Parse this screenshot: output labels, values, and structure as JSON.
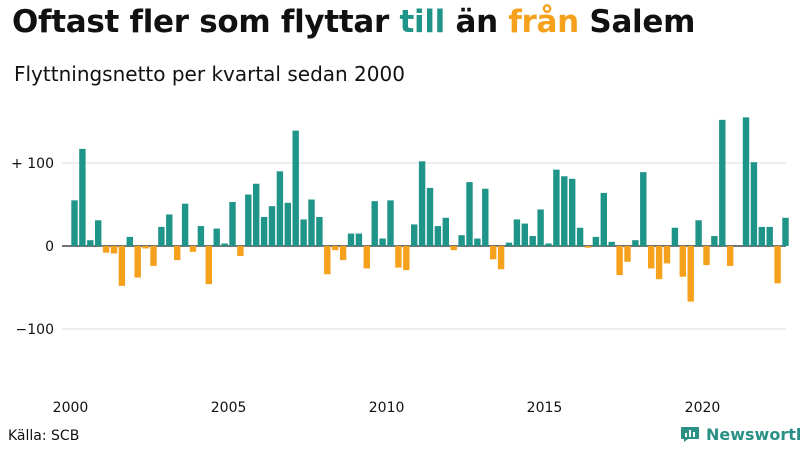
{
  "title": {
    "part1": "Oftast fler som flyttar ",
    "part2": "till",
    "part3": " än ",
    "part4": "från",
    "part5": " Salem"
  },
  "subtitle": "Flyttningsnetto per kvartal sedan 2000",
  "source": "Källa: SCB",
  "brand": "Newsworthy",
  "colors": {
    "positive": "#1f9488",
    "negative": "#f5a11c",
    "brand": "#2a8f85"
  },
  "chart_data": {
    "type": "bar",
    "x_start_year": 2000,
    "periods_per_year": 4,
    "ylim": [
      -170,
      160
    ],
    "y_ticks": [
      {
        "value": 100,
        "label": "+ 100"
      },
      {
        "value": 0,
        "label": "0"
      },
      {
        "value": -100,
        "label": "−100"
      }
    ],
    "x_ticks": [
      {
        "value": 2000,
        "label": "2000"
      },
      {
        "value": 2005,
        "label": "2005"
      },
      {
        "value": 2010,
        "label": "2010"
      },
      {
        "value": 2015,
        "label": "2015"
      },
      {
        "value": 2020,
        "label": "2020"
      }
    ],
    "values": [
      55,
      117,
      7,
      31,
      -8,
      -9,
      -48,
      11,
      -38,
      -3,
      -24,
      23,
      38,
      -17,
      51,
      -7,
      24,
      -46,
      21,
      3,
      53,
      -12,
      62,
      75,
      35,
      48,
      90,
      52,
      139,
      32,
      56,
      35,
      -34,
      -5,
      -17,
      15,
      15,
      -27,
      54,
      9,
      55,
      -26,
      -29,
      26,
      102,
      70,
      24,
      34,
      -5,
      13,
      77,
      9,
      69,
      -16,
      -28,
      4,
      32,
      27,
      12,
      44,
      3,
      92,
      84,
      81,
      22,
      -2,
      11,
      64,
      5,
      -35,
      -19,
      7,
      89,
      -27,
      -40,
      -21,
      22,
      -37,
      -67,
      31,
      -23,
      12,
      152,
      -24,
      0,
      155,
      101,
      23,
      23,
      -45,
      34
    ]
  }
}
